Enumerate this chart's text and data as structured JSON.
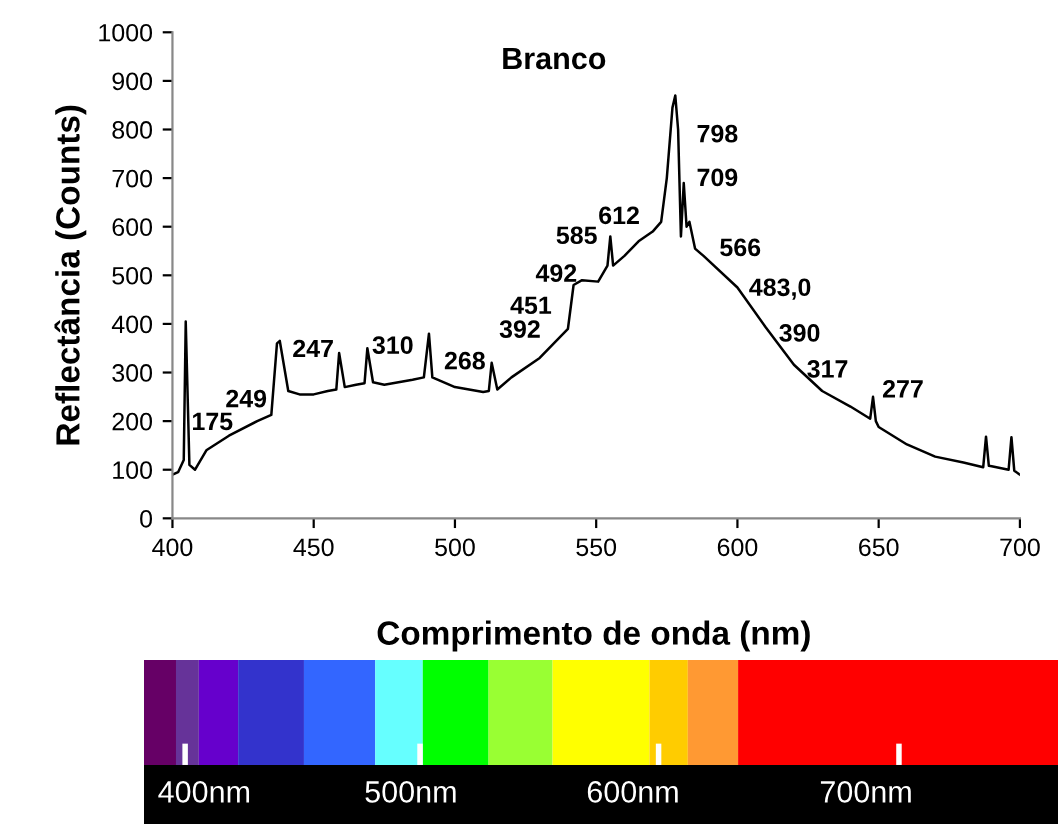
{
  "chart_data": {
    "type": "line",
    "title": "Branco",
    "xlabel": "Comprimento de onda (nm)",
    "ylabel": "Reflectância (Counts)",
    "series": [
      {
        "color": "#000000",
        "x": [
          400,
          402,
          404,
          404.7,
          406,
          408,
          412,
          420,
          430,
          435,
          437,
          438,
          441,
          445,
          450,
          455,
          458,
          459,
          461,
          465,
          468,
          469,
          471,
          475,
          480,
          485,
          489,
          490.8,
          492,
          500,
          510,
          512,
          513,
          515,
          520,
          530,
          540,
          542,
          545,
          550.7,
          554,
          555,
          556,
          560,
          565,
          570,
          573,
          575,
          577,
          578,
          579,
          580,
          581,
          582,
          583,
          585,
          588,
          600,
          610,
          620,
          630,
          640,
          647,
          648,
          649,
          650,
          660,
          670,
          680,
          687,
          688,
          689,
          690,
          696,
          697,
          698,
          700
        ],
        "values": [
          90,
          95,
          120,
          405,
          110,
          100,
          140,
          170,
          200,
          213,
          360,
          365,
          262,
          255,
          255,
          262,
          265,
          340,
          270,
          275,
          278,
          350,
          280,
          275,
          280,
          285,
          290,
          380,
          290,
          270,
          260,
          262,
          320,
          265,
          290,
          330,
          390,
          480,
          490,
          487,
          520,
          580,
          520,
          540,
          570,
          590,
          610,
          700,
          845,
          870,
          800,
          580,
          690,
          600,
          610,
          555,
          540,
          475,
          393,
          316,
          262,
          230,
          205,
          250,
          200,
          188,
          152,
          127,
          115,
          105,
          168,
          108,
          107,
          100,
          167,
          98,
          90
        ]
      }
    ],
    "xlim": [
      400,
      700
    ],
    "xticks": [
      400,
      450,
      500,
      550,
      600,
      650,
      700
    ],
    "ylim": [
      0,
      1000
    ],
    "yticks": [
      0,
      100,
      200,
      300,
      400,
      500,
      600,
      700,
      800,
      900,
      1000
    ],
    "grid": false,
    "legend": false,
    "marker": "none",
    "line_style": "solid",
    "annotations": [
      "175",
      "249",
      "247",
      "310",
      "268",
      "392",
      "451",
      "492",
      "585",
      "612",
      "798",
      "709",
      "566",
      "483,0",
      "390",
      "317",
      "277",
      "400nm",
      "500nm",
      "600nm",
      "700nm"
    ]
  }
}
